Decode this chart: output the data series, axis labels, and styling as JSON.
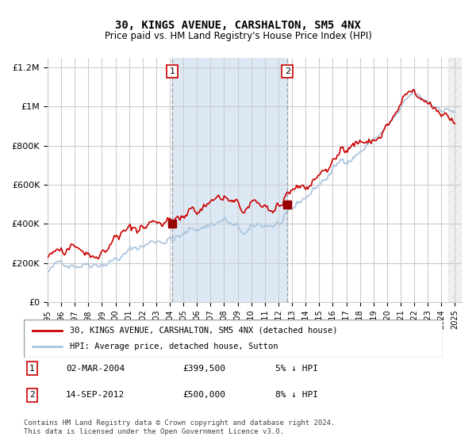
{
  "title": "30, KINGS AVENUE, CARSHALTON, SM5 4NX",
  "subtitle": "Price paid vs. HM Land Registry's House Price Index (HPI)",
  "legend_line1": "30, KINGS AVENUE, CARSHALTON, SM5 4NX (detached house)",
  "legend_line2": "HPI: Average price, detached house, Sutton",
  "transaction1_date": "02-MAR-2004",
  "transaction1_price": 399500,
  "transaction1_label": "1",
  "transaction1_note": "5% ↓ HPI",
  "transaction2_date": "14-SEP-2012",
  "transaction2_price": 500000,
  "transaction2_label": "2",
  "transaction2_note": "8% ↓ HPI",
  "footer": "Contains HM Land Registry data © Crown copyright and database right 2024.\nThis data is licensed under the Open Government Licence v3.0.",
  "hpi_color": "#aac4dd",
  "price_color": "#cc0000",
  "marker_color": "#990000",
  "bg_highlight_color": "#dce9f5",
  "grid_color": "#cccccc",
  "ylim": [
    0,
    1250000
  ],
  "xlim_start": 1995.0,
  "xlim_end": 2025.5
}
